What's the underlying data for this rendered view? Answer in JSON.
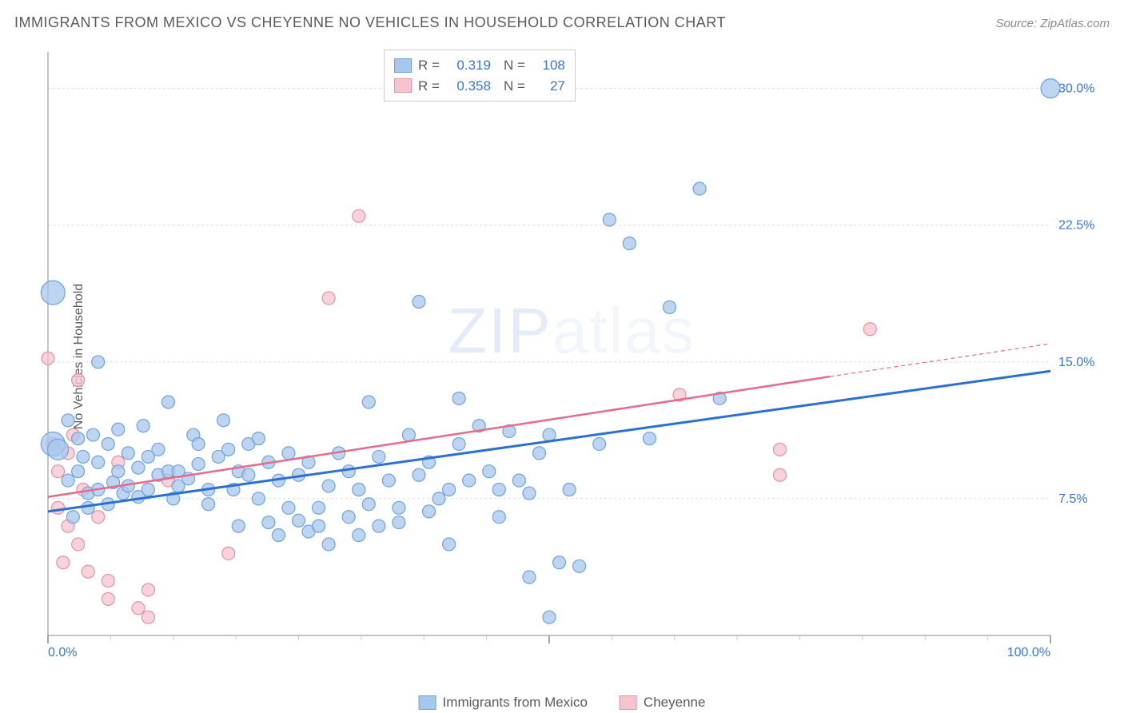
{
  "title": "IMMIGRANTS FROM MEXICO VS CHEYENNE NO VEHICLES IN HOUSEHOLD CORRELATION CHART",
  "source": "Source: ZipAtlas.com",
  "y_axis_label": "No Vehicles in Household",
  "watermark": "ZIPatlas",
  "legend_top": {
    "rows": [
      {
        "swatch_fill": "#a7c7ec",
        "swatch_border": "#6fa3dd",
        "r_label": "R =",
        "r_val": "0.319",
        "n_label": "N =",
        "n_val": "108"
      },
      {
        "swatch_fill": "#f5c4cf",
        "swatch_border": "#e890a7",
        "r_label": "R =",
        "r_val": "0.358",
        "n_label": "N =",
        "n_val": "27"
      }
    ]
  },
  "legend_bottom": {
    "items": [
      {
        "swatch_fill": "#a7c7ec",
        "swatch_border": "#6fa3dd",
        "label": "Immigrants from Mexico"
      },
      {
        "swatch_fill": "#f5c4cf",
        "swatch_border": "#e890a7",
        "label": "Cheyenne"
      }
    ]
  },
  "chart": {
    "type": "scatter",
    "background_color": "#ffffff",
    "grid_color": "#dddddd",
    "axis_color": "#888888",
    "tick_color": "#cccccc",
    "xlim": [
      0,
      100
    ],
    "ylim": [
      0,
      32
    ],
    "x_ticks_major": [
      0,
      50,
      100
    ],
    "x_ticks_minor": [
      6.25,
      12.5,
      18.75,
      25,
      31.25,
      37.5,
      43.75,
      56.25,
      62.5,
      68.75,
      75,
      81.25,
      87.5,
      93.75
    ],
    "x_tick_labels": [
      {
        "x": 0,
        "text": "0.0%"
      },
      {
        "x": 100,
        "text": "100.0%"
      }
    ],
    "y_grid": [
      7.5,
      15.0,
      22.5,
      30.0
    ],
    "y_tick_labels": [
      {
        "y": 7.5,
        "text": "7.5%"
      },
      {
        "y": 15.0,
        "text": "15.0%"
      },
      {
        "y": 22.5,
        "text": "22.5%"
      },
      {
        "y": 30.0,
        "text": "30.0%"
      }
    ],
    "series": [
      {
        "name": "Immigrants from Mexico",
        "marker_fill": "#a7c7ec",
        "marker_stroke": "#6fa3dd",
        "marker_opacity": 0.75,
        "marker_r_default": 8,
        "trend": {
          "color": "#2a6fd6",
          "width": 3,
          "x1": 0,
          "y1": 6.8,
          "x2": 100,
          "y2": 14.5
        },
        "points": [
          {
            "x": 0.5,
            "y": 18.8,
            "r": 15
          },
          {
            "x": 0.5,
            "y": 10.5,
            "r": 15
          },
          {
            "x": 1,
            "y": 10.2,
            "r": 13
          },
          {
            "x": 2,
            "y": 8.5
          },
          {
            "x": 2,
            "y": 11.8
          },
          {
            "x": 2.5,
            "y": 6.5
          },
          {
            "x": 3,
            "y": 9.0
          },
          {
            "x": 3,
            "y": 10.8
          },
          {
            "x": 3.5,
            "y": 9.8
          },
          {
            "x": 4,
            "y": 7.8
          },
          {
            "x": 4,
            "y": 7.0
          },
          {
            "x": 4.5,
            "y": 11.0
          },
          {
            "x": 5,
            "y": 8.0
          },
          {
            "x": 5,
            "y": 9.5
          },
          {
            "x": 5,
            "y": 15.0
          },
          {
            "x": 6,
            "y": 7.2
          },
          {
            "x": 6,
            "y": 10.5
          },
          {
            "x": 6.5,
            "y": 8.4
          },
          {
            "x": 7,
            "y": 11.3
          },
          {
            "x": 7,
            "y": 9.0
          },
          {
            "x": 7.5,
            "y": 7.8
          },
          {
            "x": 8,
            "y": 8.2
          },
          {
            "x": 8,
            "y": 10.0
          },
          {
            "x": 9,
            "y": 9.2
          },
          {
            "x": 9,
            "y": 7.6
          },
          {
            "x": 9.5,
            "y": 11.5
          },
          {
            "x": 10,
            "y": 8.0
          },
          {
            "x": 10,
            "y": 9.8
          },
          {
            "x": 11,
            "y": 8.8
          },
          {
            "x": 11,
            "y": 10.2
          },
          {
            "x": 12,
            "y": 12.8
          },
          {
            "x": 12,
            "y": 9.0
          },
          {
            "x": 12.5,
            "y": 7.5
          },
          {
            "x": 13,
            "y": 8.2
          },
          {
            "x": 13,
            "y": 9.0
          },
          {
            "x": 14,
            "y": 8.6
          },
          {
            "x": 14.5,
            "y": 11.0
          },
          {
            "x": 15,
            "y": 9.4
          },
          {
            "x": 15,
            "y": 10.5
          },
          {
            "x": 16,
            "y": 8.0
          },
          {
            "x": 16,
            "y": 7.2
          },
          {
            "x": 17,
            "y": 9.8
          },
          {
            "x": 17.5,
            "y": 11.8
          },
          {
            "x": 18,
            "y": 10.2
          },
          {
            "x": 18.5,
            "y": 8.0
          },
          {
            "x": 19,
            "y": 6.0
          },
          {
            "x": 19,
            "y": 9.0
          },
          {
            "x": 20,
            "y": 10.5
          },
          {
            "x": 20,
            "y": 8.8
          },
          {
            "x": 21,
            "y": 7.5
          },
          {
            "x": 21,
            "y": 10.8
          },
          {
            "x": 22,
            "y": 9.5
          },
          {
            "x": 22,
            "y": 6.2
          },
          {
            "x": 23,
            "y": 8.5
          },
          {
            "x": 23,
            "y": 5.5
          },
          {
            "x": 24,
            "y": 10.0
          },
          {
            "x": 24,
            "y": 7.0
          },
          {
            "x": 25,
            "y": 6.3
          },
          {
            "x": 25,
            "y": 8.8
          },
          {
            "x": 26,
            "y": 5.7
          },
          {
            "x": 26,
            "y": 9.5
          },
          {
            "x": 27,
            "y": 7.0
          },
          {
            "x": 27,
            "y": 6.0
          },
          {
            "x": 28,
            "y": 8.2
          },
          {
            "x": 28,
            "y": 5.0
          },
          {
            "x": 29,
            "y": 10.0
          },
          {
            "x": 30,
            "y": 6.5
          },
          {
            "x": 30,
            "y": 9.0
          },
          {
            "x": 31,
            "y": 8.0
          },
          {
            "x": 31,
            "y": 5.5
          },
          {
            "x": 32,
            "y": 12.8
          },
          {
            "x": 32,
            "y": 7.2
          },
          {
            "x": 33,
            "y": 6.0
          },
          {
            "x": 33,
            "y": 9.8
          },
          {
            "x": 34,
            "y": 8.5
          },
          {
            "x": 35,
            "y": 7.0
          },
          {
            "x": 35,
            "y": 6.2
          },
          {
            "x": 36,
            "y": 11.0
          },
          {
            "x": 37,
            "y": 8.8
          },
          {
            "x": 37,
            "y": 18.3
          },
          {
            "x": 38,
            "y": 6.8
          },
          {
            "x": 38,
            "y": 9.5
          },
          {
            "x": 39,
            "y": 7.5
          },
          {
            "x": 40,
            "y": 8.0
          },
          {
            "x": 40,
            "y": 5.0
          },
          {
            "x": 41,
            "y": 13.0
          },
          {
            "x": 41,
            "y": 10.5
          },
          {
            "x": 42,
            "y": 8.5
          },
          {
            "x": 43,
            "y": 11.5
          },
          {
            "x": 44,
            "y": 9.0
          },
          {
            "x": 45,
            "y": 8.0
          },
          {
            "x": 45,
            "y": 6.5
          },
          {
            "x": 46,
            "y": 11.2
          },
          {
            "x": 47,
            "y": 8.5
          },
          {
            "x": 48,
            "y": 3.2
          },
          {
            "x": 48,
            "y": 7.8
          },
          {
            "x": 49,
            "y": 10.0
          },
          {
            "x": 50,
            "y": 1.0
          },
          {
            "x": 50,
            "y": 11.0
          },
          {
            "x": 51,
            "y": 4.0
          },
          {
            "x": 52,
            "y": 8.0
          },
          {
            "x": 53,
            "y": 3.8
          },
          {
            "x": 55,
            "y": 10.5
          },
          {
            "x": 56,
            "y": 22.8
          },
          {
            "x": 58,
            "y": 21.5
          },
          {
            "x": 60,
            "y": 10.8
          },
          {
            "x": 62,
            "y": 18.0
          },
          {
            "x": 65,
            "y": 24.5
          },
          {
            "x": 67,
            "y": 13.0
          },
          {
            "x": 100,
            "y": 30.0,
            "r": 12
          }
        ]
      },
      {
        "name": "Cheyenne",
        "marker_fill": "#f5c4cf",
        "marker_stroke": "#e890a7",
        "marker_opacity": 0.75,
        "marker_r_default": 8,
        "trend": {
          "color": "#e66a8a",
          "width": 2.5,
          "x1": 0,
          "y1": 7.6,
          "x2": 78,
          "y2": 14.2,
          "dash_ext_x": 100,
          "dash_ext_y": 16.0
        },
        "points": [
          {
            "x": 0,
            "y": 15.2
          },
          {
            "x": 0.5,
            "y": 10.5
          },
          {
            "x": 1,
            "y": 9.0
          },
          {
            "x": 1,
            "y": 7.0
          },
          {
            "x": 1.5,
            "y": 4.0
          },
          {
            "x": 2,
            "y": 10.0
          },
          {
            "x": 2,
            "y": 6.0
          },
          {
            "x": 2.5,
            "y": 11.0
          },
          {
            "x": 3,
            "y": 14.0
          },
          {
            "x": 3,
            "y": 5.0
          },
          {
            "x": 3.5,
            "y": 8.0
          },
          {
            "x": 4,
            "y": 3.5
          },
          {
            "x": 5,
            "y": 6.5
          },
          {
            "x": 6,
            "y": 2.0
          },
          {
            "x": 6,
            "y": 3.0
          },
          {
            "x": 7,
            "y": 9.5
          },
          {
            "x": 9,
            "y": 1.5
          },
          {
            "x": 10,
            "y": 2.5
          },
          {
            "x": 10,
            "y": 1.0
          },
          {
            "x": 12,
            "y": 8.5
          },
          {
            "x": 18,
            "y": 4.5
          },
          {
            "x": 28,
            "y": 18.5
          },
          {
            "x": 31,
            "y": 23.0
          },
          {
            "x": 63,
            "y": 13.2
          },
          {
            "x": 73,
            "y": 10.2
          },
          {
            "x": 73,
            "y": 8.8
          },
          {
            "x": 82,
            "y": 16.8
          }
        ]
      }
    ]
  }
}
